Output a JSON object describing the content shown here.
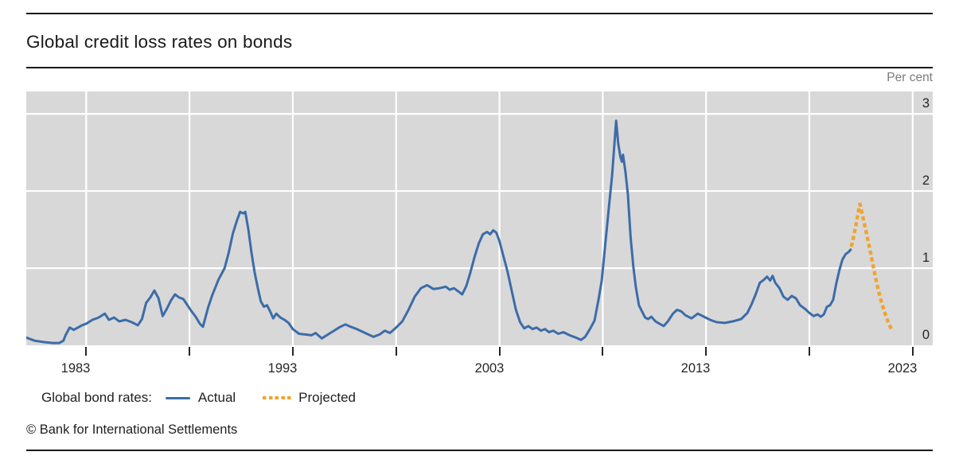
{
  "header": {
    "title": "Global credit loss rates on bonds"
  },
  "axis_unit_label": "Per cent",
  "legend": {
    "series_label": "Global bond rates:",
    "actual_label": "Actual",
    "projected_label": "Projected"
  },
  "footer": {
    "copyright": "© Bank for International Settlements"
  },
  "colors": {
    "actual": "#3c6ca8",
    "projected": "#f0a32e",
    "plot_bg": "#d8d8d8",
    "grid": "#ffffff",
    "text": "#262626",
    "muted": "#7a7a7a"
  },
  "chart_data": {
    "type": "line",
    "title": "Global credit loss rates on bonds",
    "xlabel": "",
    "ylabel": "Per cent",
    "xlim": [
      1980.1,
      2023.97
    ],
    "ylim": [
      0,
      3.29
    ],
    "grid": true,
    "legend_position": "bottom",
    "x_ticks": [
      1983,
      1988,
      1993,
      1998,
      2003,
      2008,
      2013,
      2018,
      2023
    ],
    "x_tick_labels": [
      "1983",
      "",
      "1993",
      "",
      "2003",
      "",
      "2013",
      "",
      "2023"
    ],
    "y_ticks": [
      0,
      1,
      2,
      3
    ],
    "series": [
      {
        "name": "Actual",
        "style": "solid",
        "color": "#3c6ca8",
        "points": [
          [
            1980.1,
            0.1
          ],
          [
            1980.5,
            0.06
          ],
          [
            1981.0,
            0.04
          ],
          [
            1981.4,
            0.03
          ],
          [
            1981.7,
            0.03
          ],
          [
            1981.9,
            0.06
          ],
          [
            1982.0,
            0.13
          ],
          [
            1982.2,
            0.23
          ],
          [
            1982.4,
            0.2
          ],
          [
            1982.6,
            0.23
          ],
          [
            1982.8,
            0.26
          ],
          [
            1983.0,
            0.28
          ],
          [
            1983.3,
            0.33
          ],
          [
            1983.6,
            0.36
          ],
          [
            1983.9,
            0.41
          ],
          [
            1984.1,
            0.33
          ],
          [
            1984.35,
            0.36
          ],
          [
            1984.6,
            0.31
          ],
          [
            1984.9,
            0.33
          ],
          [
            1985.2,
            0.3
          ],
          [
            1985.5,
            0.26
          ],
          [
            1985.7,
            0.34
          ],
          [
            1985.9,
            0.55
          ],
          [
            1986.1,
            0.62
          ],
          [
            1986.3,
            0.71
          ],
          [
            1986.5,
            0.61
          ],
          [
            1986.7,
            0.38
          ],
          [
            1986.9,
            0.47
          ],
          [
            1987.1,
            0.58
          ],
          [
            1987.3,
            0.66
          ],
          [
            1987.5,
            0.62
          ],
          [
            1987.7,
            0.6
          ],
          [
            1987.9,
            0.52
          ],
          [
            1988.1,
            0.44
          ],
          [
            1988.3,
            0.37
          ],
          [
            1988.5,
            0.28
          ],
          [
            1988.65,
            0.24
          ],
          [
            1988.9,
            0.49
          ],
          [
            1989.1,
            0.65
          ],
          [
            1989.4,
            0.85
          ],
          [
            1989.7,
            1.0
          ],
          [
            1989.9,
            1.2
          ],
          [
            1990.1,
            1.45
          ],
          [
            1990.3,
            1.62
          ],
          [
            1990.45,
            1.73
          ],
          [
            1990.6,
            1.71
          ],
          [
            1990.7,
            1.73
          ],
          [
            1990.85,
            1.5
          ],
          [
            1991.0,
            1.2
          ],
          [
            1991.15,
            0.95
          ],
          [
            1991.3,
            0.75
          ],
          [
            1991.45,
            0.57
          ],
          [
            1991.6,
            0.5
          ],
          [
            1991.75,
            0.52
          ],
          [
            1991.9,
            0.44
          ],
          [
            1992.05,
            0.35
          ],
          [
            1992.2,
            0.41
          ],
          [
            1992.4,
            0.36
          ],
          [
            1992.6,
            0.33
          ],
          [
            1992.8,
            0.29
          ],
          [
            1993.0,
            0.21
          ],
          [
            1993.3,
            0.15
          ],
          [
            1993.6,
            0.14
          ],
          [
            1993.9,
            0.13
          ],
          [
            1994.1,
            0.16
          ],
          [
            1994.4,
            0.09
          ],
          [
            1994.7,
            0.14
          ],
          [
            1995.0,
            0.19
          ],
          [
            1995.3,
            0.24
          ],
          [
            1995.55,
            0.27
          ],
          [
            1995.8,
            0.24
          ],
          [
            1996.1,
            0.21
          ],
          [
            1996.5,
            0.16
          ],
          [
            1996.9,
            0.11
          ],
          [
            1997.2,
            0.14
          ],
          [
            1997.45,
            0.19
          ],
          [
            1997.7,
            0.16
          ],
          [
            1998.0,
            0.23
          ],
          [
            1998.3,
            0.31
          ],
          [
            1998.6,
            0.46
          ],
          [
            1998.9,
            0.63
          ],
          [
            1999.2,
            0.74
          ],
          [
            1999.5,
            0.78
          ],
          [
            1999.8,
            0.73
          ],
          [
            2000.1,
            0.74
          ],
          [
            2000.4,
            0.76
          ],
          [
            2000.6,
            0.72
          ],
          [
            2000.8,
            0.74
          ],
          [
            2001.0,
            0.7
          ],
          [
            2001.2,
            0.66
          ],
          [
            2001.4,
            0.77
          ],
          [
            2001.6,
            0.95
          ],
          [
            2001.8,
            1.15
          ],
          [
            2002.0,
            1.32
          ],
          [
            2002.2,
            1.44
          ],
          [
            2002.4,
            1.47
          ],
          [
            2002.55,
            1.44
          ],
          [
            2002.7,
            1.49
          ],
          [
            2002.85,
            1.46
          ],
          [
            2003.0,
            1.35
          ],
          [
            2003.2,
            1.15
          ],
          [
            2003.4,
            0.95
          ],
          [
            2003.6,
            0.7
          ],
          [
            2003.8,
            0.46
          ],
          [
            2004.0,
            0.3
          ],
          [
            2004.2,
            0.22
          ],
          [
            2004.4,
            0.25
          ],
          [
            2004.6,
            0.21
          ],
          [
            2004.8,
            0.23
          ],
          [
            2005.0,
            0.19
          ],
          [
            2005.2,
            0.21
          ],
          [
            2005.4,
            0.17
          ],
          [
            2005.6,
            0.19
          ],
          [
            2005.85,
            0.15
          ],
          [
            2006.1,
            0.17
          ],
          [
            2006.4,
            0.13
          ],
          [
            2006.7,
            0.1
          ],
          [
            2006.95,
            0.07
          ],
          [
            2007.15,
            0.11
          ],
          [
            2007.4,
            0.22
          ],
          [
            2007.6,
            0.32
          ],
          [
            2007.8,
            0.6
          ],
          [
            2007.95,
            0.84
          ],
          [
            2008.1,
            1.25
          ],
          [
            2008.3,
            1.8
          ],
          [
            2008.45,
            2.2
          ],
          [
            2008.55,
            2.55
          ],
          [
            2008.65,
            2.91
          ],
          [
            2008.75,
            2.62
          ],
          [
            2008.85,
            2.45
          ],
          [
            2008.92,
            2.38
          ],
          [
            2008.98,
            2.47
          ],
          [
            2009.1,
            2.25
          ],
          [
            2009.22,
            1.95
          ],
          [
            2009.35,
            1.4
          ],
          [
            2009.48,
            1.02
          ],
          [
            2009.6,
            0.76
          ],
          [
            2009.75,
            0.52
          ],
          [
            2009.9,
            0.44
          ],
          [
            2010.05,
            0.36
          ],
          [
            2010.2,
            0.34
          ],
          [
            2010.35,
            0.37
          ],
          [
            2010.55,
            0.31
          ],
          [
            2010.75,
            0.28
          ],
          [
            2010.95,
            0.25
          ],
          [
            2011.15,
            0.31
          ],
          [
            2011.4,
            0.41
          ],
          [
            2011.6,
            0.46
          ],
          [
            2011.8,
            0.44
          ],
          [
            2012.0,
            0.39
          ],
          [
            2012.3,
            0.35
          ],
          [
            2012.6,
            0.41
          ],
          [
            2012.9,
            0.37
          ],
          [
            2013.2,
            0.33
          ],
          [
            2013.5,
            0.3
          ],
          [
            2013.9,
            0.29
          ],
          [
            2014.3,
            0.31
          ],
          [
            2014.7,
            0.34
          ],
          [
            2015.0,
            0.42
          ],
          [
            2015.2,
            0.53
          ],
          [
            2015.4,
            0.66
          ],
          [
            2015.6,
            0.81
          ],
          [
            2015.8,
            0.85
          ],
          [
            2015.95,
            0.89
          ],
          [
            2016.1,
            0.84
          ],
          [
            2016.22,
            0.9
          ],
          [
            2016.35,
            0.81
          ],
          [
            2016.55,
            0.74
          ],
          [
            2016.75,
            0.63
          ],
          [
            2016.95,
            0.59
          ],
          [
            2017.15,
            0.64
          ],
          [
            2017.35,
            0.61
          ],
          [
            2017.55,
            0.52
          ],
          [
            2017.8,
            0.47
          ],
          [
            2018.0,
            0.42
          ],
          [
            2018.2,
            0.38
          ],
          [
            2018.4,
            0.4
          ],
          [
            2018.55,
            0.37
          ],
          [
            2018.7,
            0.4
          ],
          [
            2018.85,
            0.5
          ],
          [
            2019.0,
            0.52
          ],
          [
            2019.15,
            0.59
          ],
          [
            2019.3,
            0.8
          ],
          [
            2019.45,
            0.97
          ],
          [
            2019.6,
            1.11
          ],
          [
            2019.75,
            1.18
          ],
          [
            2019.9,
            1.21
          ],
          [
            2020.0,
            1.24
          ]
        ]
      },
      {
        "name": "Projected",
        "style": "dotted",
        "color": "#f0a32e",
        "points": [
          [
            2020.05,
            1.3
          ],
          [
            2020.15,
            1.42
          ],
          [
            2020.25,
            1.55
          ],
          [
            2020.35,
            1.7
          ],
          [
            2020.45,
            1.83
          ],
          [
            2020.6,
            1.65
          ],
          [
            2020.75,
            1.47
          ],
          [
            2020.9,
            1.28
          ],
          [
            2021.05,
            1.08
          ],
          [
            2021.2,
            0.88
          ],
          [
            2021.35,
            0.7
          ],
          [
            2021.5,
            0.55
          ],
          [
            2021.65,
            0.42
          ],
          [
            2021.8,
            0.31
          ],
          [
            2021.95,
            0.22
          ]
        ]
      }
    ]
  }
}
